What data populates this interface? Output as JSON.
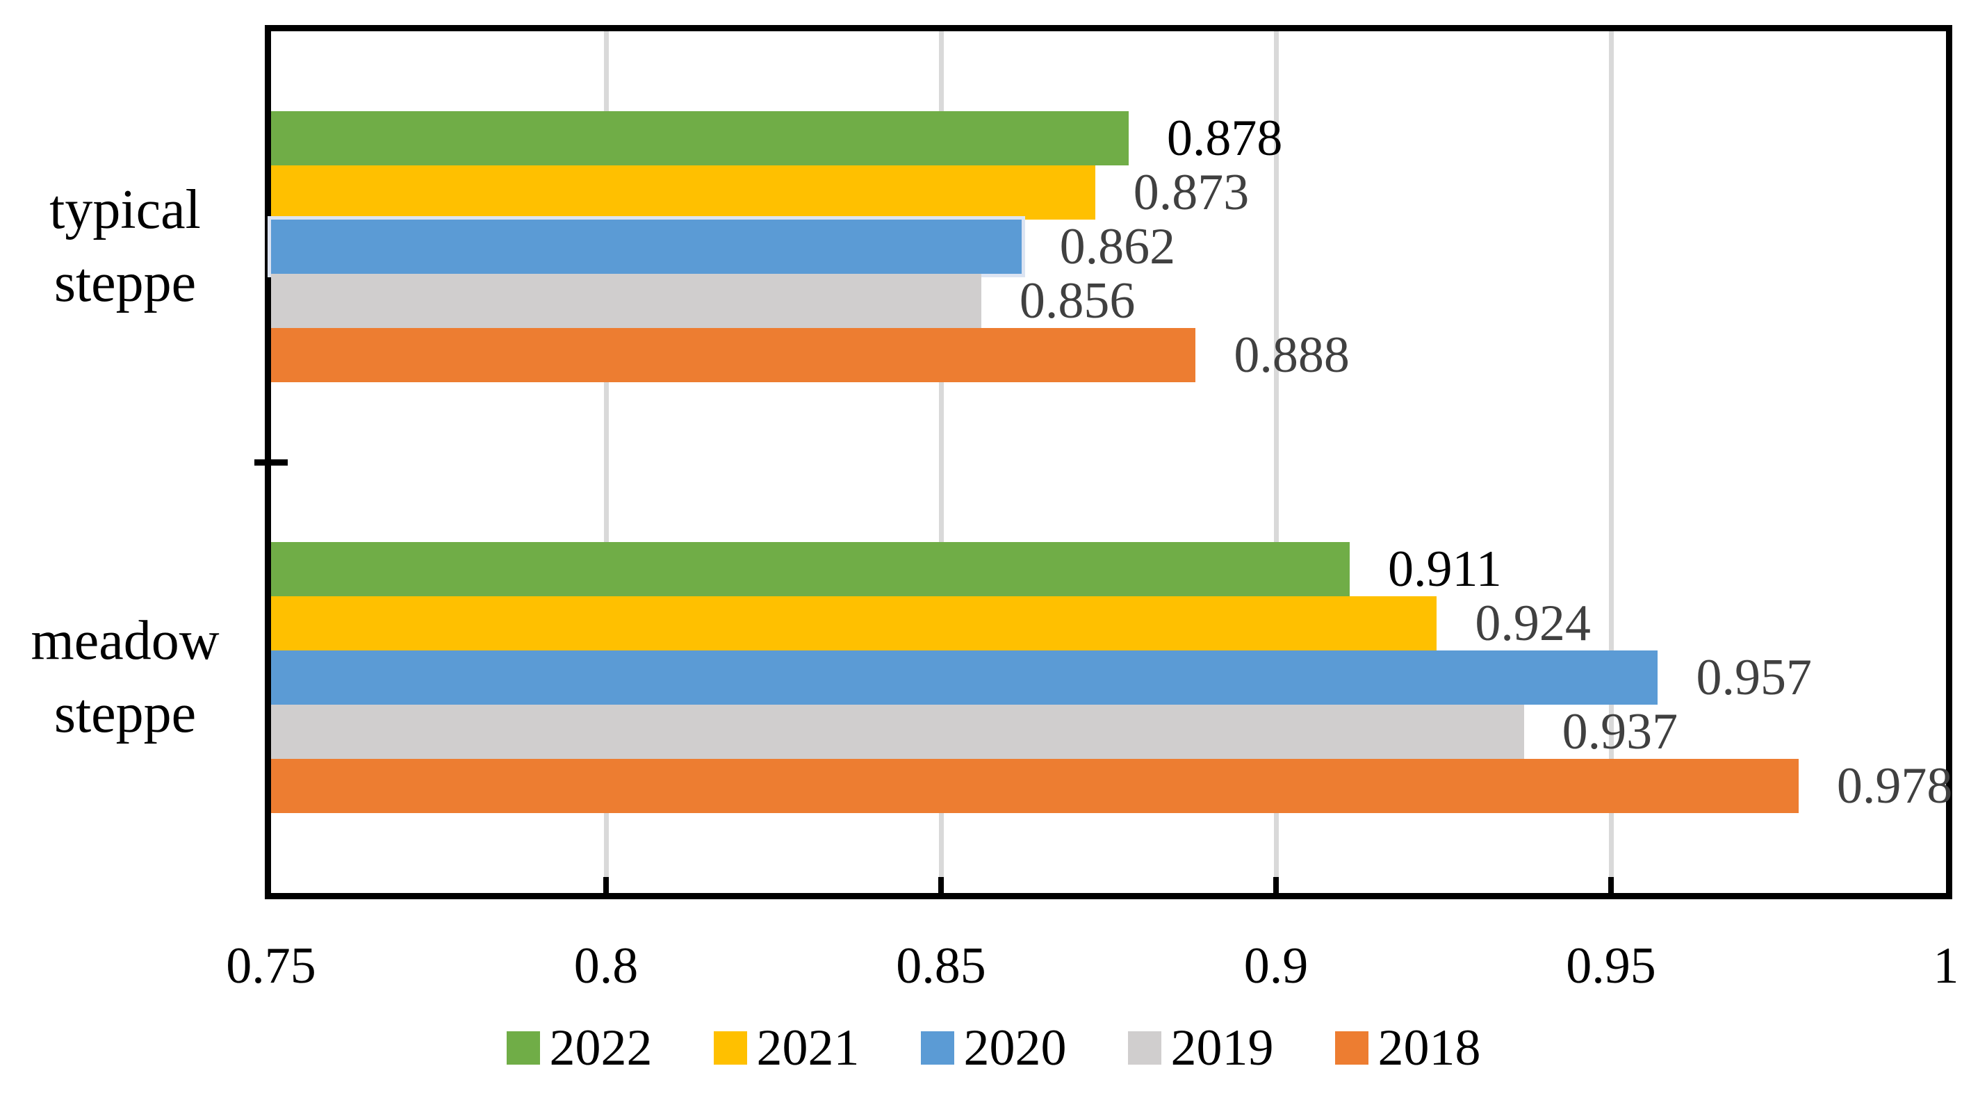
{
  "chart_data": {
    "type": "bar",
    "orientation": "horizontal",
    "title": "",
    "xlabel": "",
    "ylabel": "",
    "categories": [
      "typical steppe",
      "meadow steppe"
    ],
    "series": [
      {
        "name": "2022",
        "color": "#70AD47",
        "values": [
          0.878,
          0.911
        ]
      },
      {
        "name": "2021",
        "color": "#FFC000",
        "values": [
          0.873,
          0.924
        ]
      },
      {
        "name": "2020",
        "color": "#5B9BD5",
        "values": [
          0.862,
          0.957
        ]
      },
      {
        "name": "2019",
        "color": "#D0CECE",
        "values": [
          0.856,
          0.937
        ]
      },
      {
        "name": "2018",
        "color": "#ED7D31",
        "values": [
          0.888,
          0.978
        ]
      }
    ],
    "xlim": [
      0.75,
      1.0
    ],
    "x_ticks": [
      {
        "value": 0.75,
        "label": "0.75"
      },
      {
        "value": 0.8,
        "label": "0.8"
      },
      {
        "value": 0.85,
        "label": "0.85"
      },
      {
        "value": 0.9,
        "label": "0.9"
      },
      {
        "value": 0.95,
        "label": "0.95"
      },
      {
        "value": 1.0,
        "label": "1"
      }
    ],
    "grid": "vertical-on",
    "gridline_color": "#D9D9D9",
    "axis_color": "#000000",
    "legend_position": "bottom",
    "legend_entries": [
      "2022",
      "2021",
      "2020",
      "2019",
      "2018"
    ],
    "data_labels": {
      "decimals": 3,
      "values_by_category": {
        "typical steppe": [
          0.878,
          0.873,
          0.862,
          0.856,
          0.888
        ],
        "meadow steppe": [
          0.911,
          0.924,
          0.957,
          0.937,
          0.978
        ]
      },
      "first_series_text_color": "#000000",
      "other_series_text_color": "#404040"
    },
    "highlight": {
      "series": "2020",
      "category": "typical steppe",
      "border_color": "#DCE4F2"
    }
  }
}
